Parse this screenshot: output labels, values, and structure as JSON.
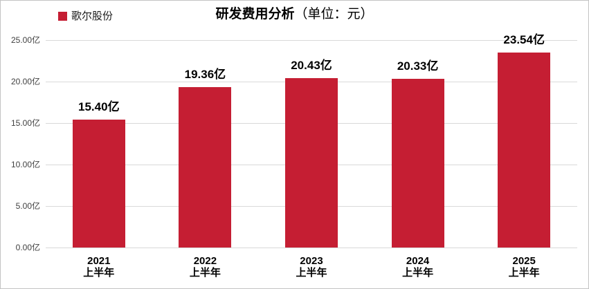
{
  "header": {
    "legend": {
      "label": "歌尔股份",
      "color": "#c51e33"
    },
    "title": {
      "main": "研发费用分析",
      "unit": "（单位：元）"
    }
  },
  "chart_data": {
    "type": "bar",
    "title": "研发费用分析（单位：元）",
    "legend": [
      "歌尔股份"
    ],
    "legend_position": "top-left",
    "categories": [
      {
        "year": "2021",
        "period": "上半年"
      },
      {
        "year": "2022",
        "period": "上半年"
      },
      {
        "year": "2023",
        "period": "上半年"
      },
      {
        "year": "2024",
        "period": "上半年"
      },
      {
        "year": "2025",
        "period": "上半年"
      }
    ],
    "series": [
      {
        "name": "歌尔股份",
        "values": [
          15.4,
          19.36,
          20.43,
          20.33,
          23.54
        ]
      }
    ],
    "value_labels": [
      "15.40亿",
      "19.36亿",
      "20.43亿",
      "20.33亿",
      "23.54亿"
    ],
    "unit": "亿",
    "xlabel": "",
    "ylabel": "",
    "ylim": [
      0,
      25
    ],
    "ytick_interval": 5,
    "ytick_labels": [
      "0.00亿",
      "5.00亿",
      "10.00亿",
      "15.00亿",
      "20.00亿",
      "25.00亿"
    ],
    "grid": true,
    "bar_color": "#c51e33",
    "gridline_color": "#d9d9d9"
  }
}
